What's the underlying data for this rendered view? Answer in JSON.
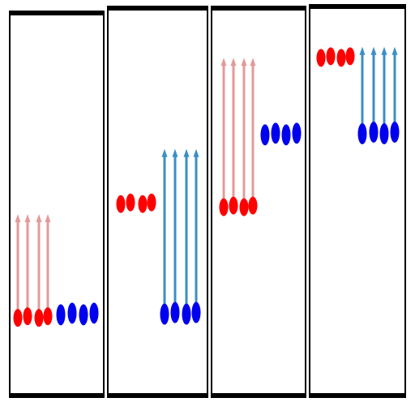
{
  "colors": {
    "frame": "#000000",
    "background": "#ffffff",
    "red_dot": "#ff0000",
    "blue_dot": "#0000ee",
    "red_arrow": "#e39a9a",
    "blue_arrow": "#3a8fc6"
  },
  "panels": [
    {
      "name": "panel-1",
      "red": {
        "level": 0.12,
        "arrow_to": 0.45,
        "arrow_color": "red_arrow"
      },
      "blue": {
        "level": 0.13,
        "arrow_to": null,
        "arrow_color": null
      }
    },
    {
      "name": "panel-2",
      "red": {
        "level": 0.48,
        "arrow_to": null,
        "arrow_color": null
      },
      "blue": {
        "level": 0.13,
        "arrow_to": 0.65,
        "arrow_color": "blue_arrow"
      }
    },
    {
      "name": "panel-3",
      "red": {
        "level": 0.47,
        "arrow_to": 0.94,
        "arrow_color": "red_arrow"
      },
      "blue": {
        "level": 0.7,
        "arrow_to": null,
        "arrow_color": null
      }
    },
    {
      "name": "panel-4",
      "red": {
        "level": 0.94,
        "arrow_to": null,
        "arrow_color": null
      },
      "blue": {
        "level": 0.7,
        "arrow_to": 0.97,
        "arrow_color": "blue_arrow"
      }
    }
  ],
  "dots_per_group": 4
}
